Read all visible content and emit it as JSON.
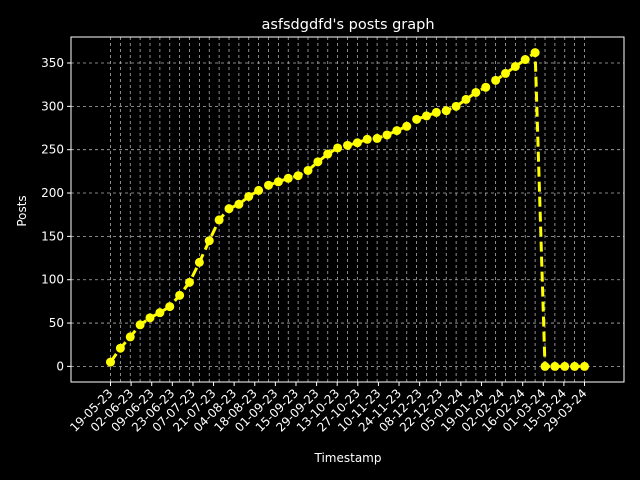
{
  "chart_data": {
    "type": "line",
    "title": "asfsdgdfd's posts graph",
    "xlabel": "Timestamp",
    "ylabel": "Posts",
    "ylim": [
      -18,
      380
    ],
    "yticks": [
      0,
      50,
      100,
      150,
      200,
      250,
      300,
      350
    ],
    "grid": true,
    "background": "#000000",
    "foreground": "#ffffff",
    "line_color": "#ffff00",
    "line_style": "dashed",
    "marker": "circle",
    "x_tick_labels": [
      "19-05-23",
      "02-06-23",
      "09-06-23",
      "23-06-23",
      "07-07-23",
      "21-07-23",
      "04-08-23",
      "18-08-23",
      "01-09-23",
      "15-09-23",
      "29-09-23",
      "13-10-23",
      "27-10-23",
      "10-11-23",
      "24-11-23",
      "08-12-23",
      "22-12-23",
      "05-01-24",
      "19-01-24",
      "02-02-24",
      "16-02-24",
      "01-03-24",
      "15-03-24",
      "29-03-24"
    ],
    "series": [
      {
        "name": "",
        "values": [
          5,
          21,
          34,
          48,
          56,
          62,
          69,
          82,
          97,
          120,
          145,
          169,
          182,
          187,
          196,
          203,
          209,
          213,
          217,
          220,
          226,
          236,
          245,
          252,
          255,
          258,
          262,
          263,
          267,
          272,
          277,
          285,
          289,
          293,
          295,
          300,
          308,
          316,
          322,
          330,
          338,
          346,
          354,
          362,
          0,
          0,
          0,
          0,
          0
        ]
      }
    ]
  }
}
